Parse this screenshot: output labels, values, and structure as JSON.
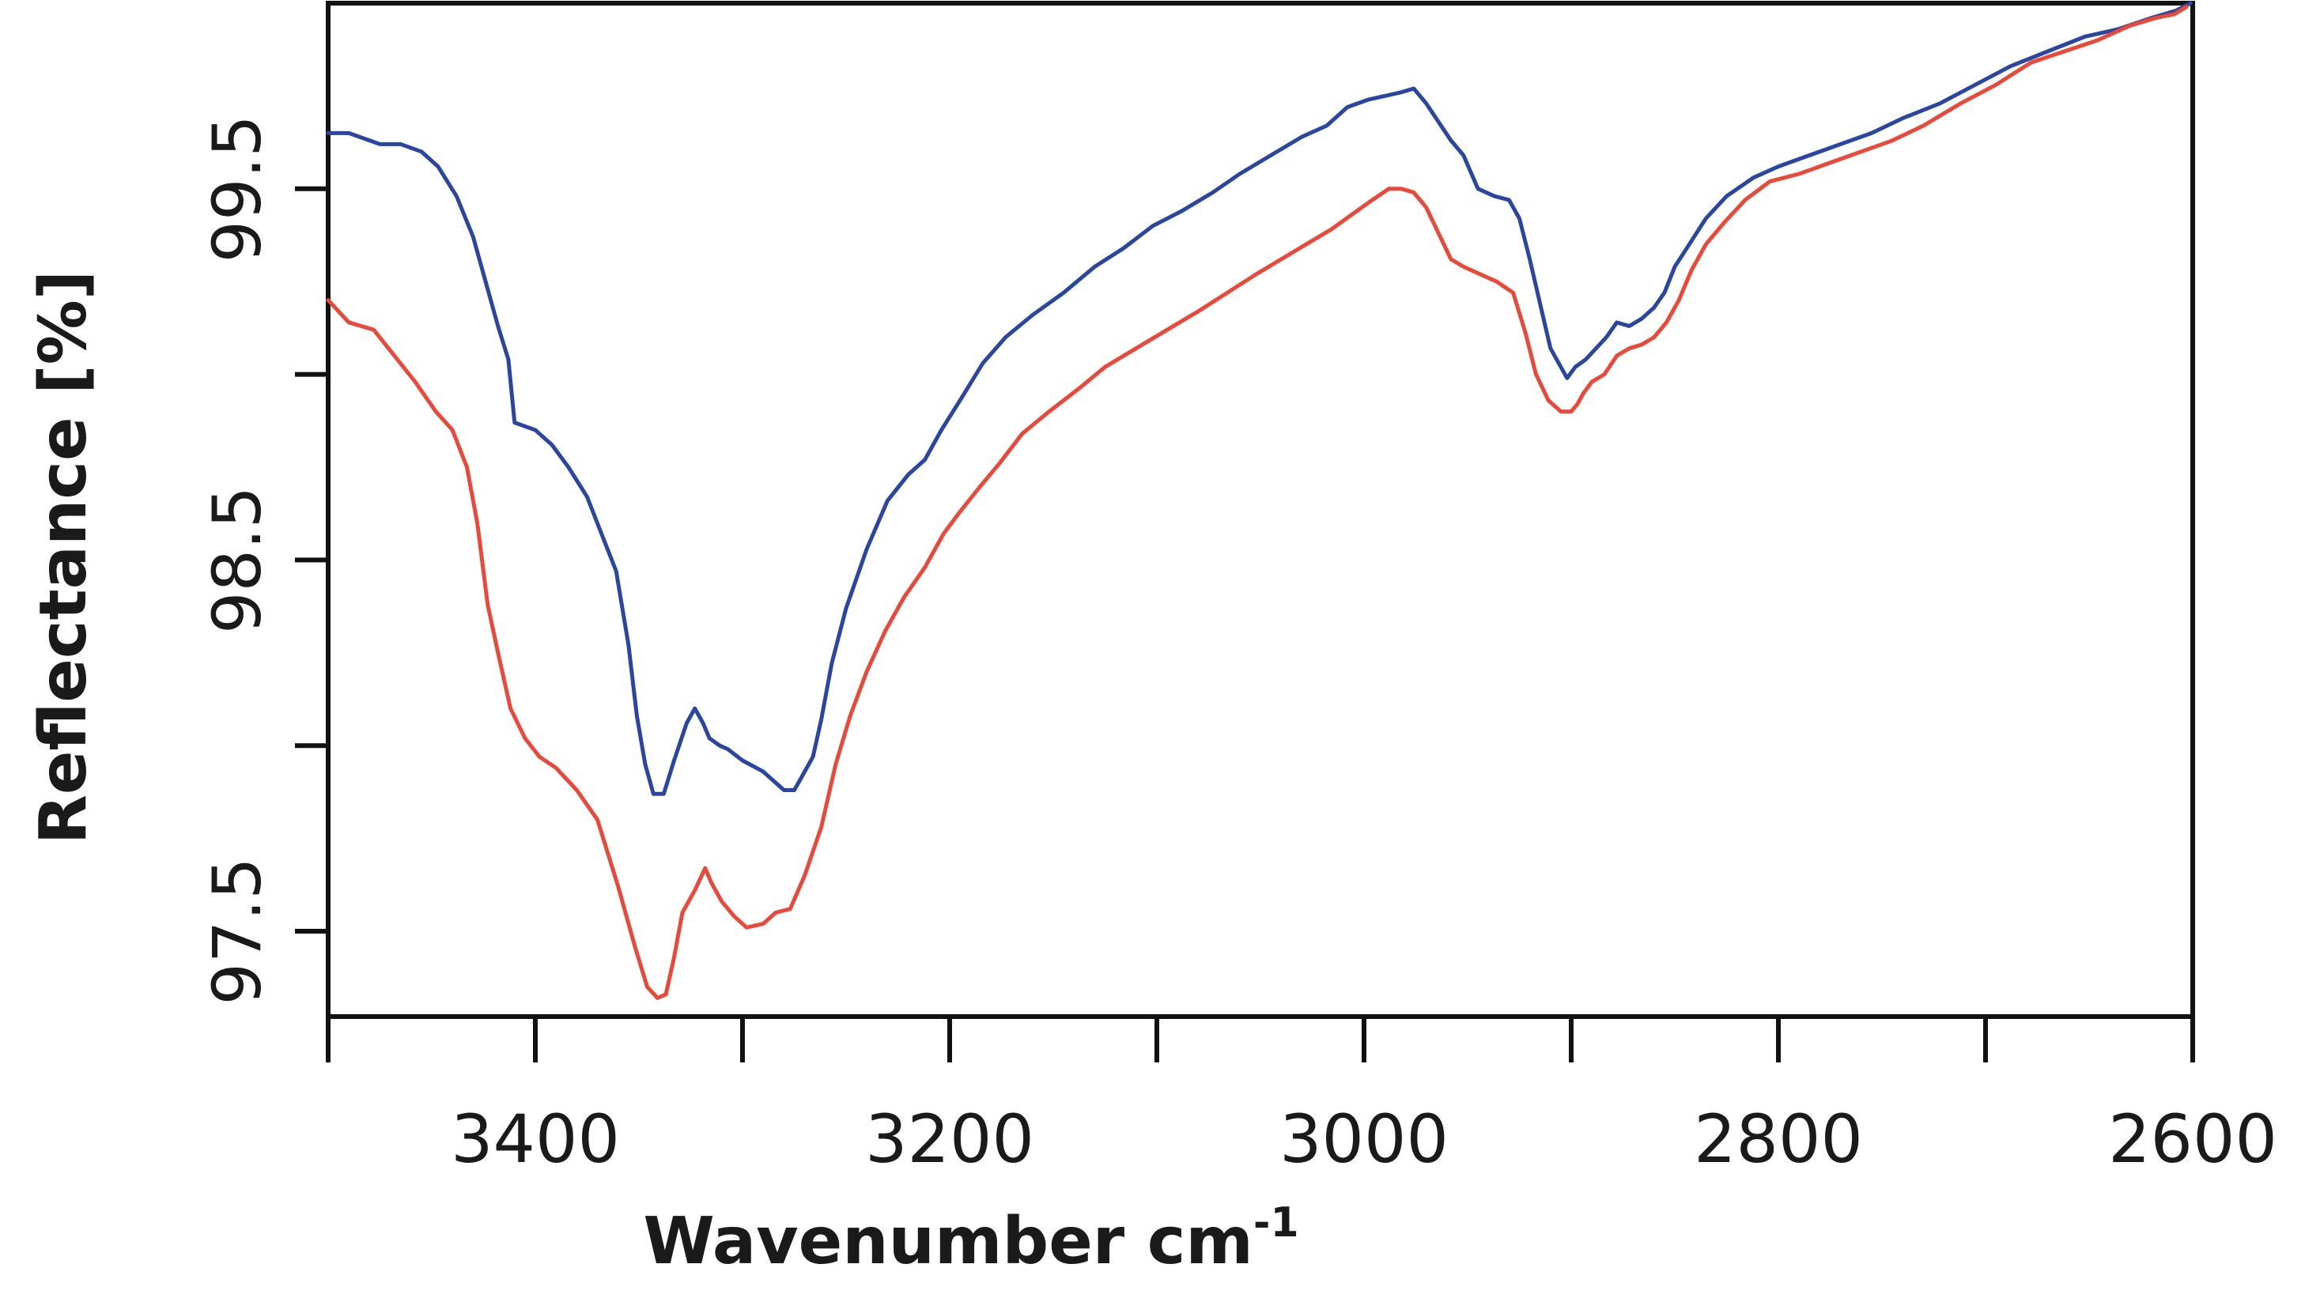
{
  "chart_data": {
    "type": "line",
    "title": "",
    "xlabel": "Wavenumber cm",
    "xlabel_superscript": "-1",
    "ylabel": "Reflectance [%]",
    "xlim": [
      3500,
      2600
    ],
    "ylim": [
      97.27,
      100.0
    ],
    "x_ticks": [
      3500,
      3400,
      3300,
      3200,
      3100,
      3000,
      2900,
      2800,
      2700,
      2600
    ],
    "x_tick_labels": [
      {
        "value": 3400,
        "text": "3400"
      },
      {
        "value": 3200,
        "text": "3200"
      },
      {
        "value": 3000,
        "text": "3000"
      },
      {
        "value": 2800,
        "text": "2800"
      },
      {
        "value": 2600,
        "text": "2600"
      }
    ],
    "y_ticks": [
      97.5,
      98.0,
      98.5,
      99.0,
      99.5
    ],
    "y_tick_labels": [
      {
        "value": 97.5,
        "text": "97.5"
      },
      {
        "value": 98.5,
        "text": "98.5"
      },
      {
        "value": 99.5,
        "text": "99.5"
      }
    ],
    "grid": false,
    "series": [
      {
        "color": "#2a46a0",
        "x": [
          3500,
          3490,
          3475,
          3465,
          3455,
          3447,
          3438,
          3430,
          3423,
          3418,
          3413,
          3410,
          3400,
          3392,
          3384,
          3375,
          3368,
          3361,
          3355,
          3351,
          3347,
          3343,
          3338,
          3333,
          3327,
          3323,
          3319,
          3316,
          3311,
          3307,
          3300,
          3290,
          3280,
          3275,
          3271,
          3266,
          3262,
          3257,
          3250,
          3240,
          3230,
          3220,
          3212,
          3204,
          3195,
          3184,
          3173,
          3160,
          3145,
          3130,
          3116,
          3102,
          3088,
          3073,
          3060,
          3045,
          3030,
          3018,
          3008,
          2998,
          2990,
          2982,
          2976,
          2970,
          2964,
          2958,
          2952,
          2945,
          2937,
          2930,
          2925,
          2920,
          2915,
          2910,
          2905,
          2902,
          2898,
          2893,
          2888,
          2883,
          2878,
          2872,
          2866,
          2860,
          2855,
          2850,
          2843,
          2835,
          2825,
          2812,
          2800,
          2785,
          2770,
          2755,
          2740,
          2722,
          2705,
          2688,
          2670,
          2652,
          2636,
          2620,
          2608,
          2601
        ],
        "y": [
          99.65,
          99.65,
          99.62,
          99.62,
          99.6,
          99.56,
          99.48,
          99.37,
          99.23,
          99.13,
          99.04,
          98.87,
          98.85,
          98.81,
          98.75,
          98.67,
          98.57,
          98.47,
          98.27,
          98.08,
          97.95,
          97.87,
          97.87,
          97.96,
          98.06,
          98.1,
          98.06,
          98.02,
          98.0,
          97.99,
          97.96,
          97.93,
          97.88,
          97.88,
          97.92,
          97.97,
          98.07,
          98.22,
          98.37,
          98.53,
          98.66,
          98.73,
          98.77,
          98.85,
          98.93,
          99.03,
          99.1,
          99.16,
          99.22,
          99.29,
          99.34,
          99.4,
          99.44,
          99.49,
          99.54,
          99.59,
          99.64,
          99.67,
          99.72,
          99.74,
          99.75,
          99.76,
          99.77,
          99.73,
          99.68,
          99.63,
          99.59,
          99.5,
          99.48,
          99.47,
          99.42,
          99.31,
          99.19,
          99.07,
          99.02,
          98.99,
          99.02,
          99.04,
          99.07,
          99.1,
          99.14,
          99.13,
          99.15,
          99.18,
          99.22,
          99.29,
          99.35,
          99.42,
          99.48,
          99.53,
          99.56,
          99.59,
          99.62,
          99.65,
          99.69,
          99.73,
          99.78,
          99.83,
          99.87,
          99.91,
          99.93,
          99.96,
          99.98,
          100.0
        ]
      },
      {
        "color": "#e8493a",
        "x": [
          3500,
          3490,
          3478,
          3468,
          3458,
          3448,
          3440,
          3433,
          3428,
          3423,
          3418,
          3412,
          3405,
          3398,
          3390,
          3380,
          3370,
          3360,
          3352,
          3346,
          3341,
          3337,
          3333,
          3329,
          3323,
          3318,
          3315,
          3310,
          3304,
          3298,
          3290,
          3284,
          3277,
          3270,
          3262,
          3255,
          3248,
          3240,
          3231,
          3222,
          3212,
          3203,
          3195,
          3185,
          3176,
          3165,
          3152,
          3138,
          3125,
          3110,
          3095,
          3080,
          3066,
          3052,
          3040,
          3028,
          3016,
          3006,
          2996,
          2988,
          2982,
          2976,
          2970,
          2964,
          2958,
          2952,
          2944,
          2936,
          2928,
          2922,
          2917,
          2911,
          2905,
          2900,
          2897,
          2894,
          2890,
          2884,
          2878,
          2872,
          2866,
          2860,
          2854,
          2848,
          2842,
          2835,
          2826,
          2816,
          2804,
          2790,
          2775,
          2760,
          2745,
          2730,
          2712,
          2695,
          2678,
          2662,
          2646,
          2630,
          2618,
          2609,
          2603
        ],
        "y": [
          99.2,
          99.14,
          99.12,
          99.05,
          98.98,
          98.9,
          98.85,
          98.75,
          98.6,
          98.38,
          98.25,
          98.1,
          98.02,
          97.97,
          97.94,
          97.88,
          97.8,
          97.62,
          97.46,
          97.35,
          97.32,
          97.33,
          97.43,
          97.55,
          97.61,
          97.67,
          97.63,
          97.58,
          97.54,
          97.51,
          97.52,
          97.55,
          97.56,
          97.65,
          97.78,
          97.95,
          98.08,
          98.2,
          98.31,
          98.4,
          98.48,
          98.57,
          98.63,
          98.7,
          98.76,
          98.84,
          98.9,
          98.96,
          99.02,
          99.07,
          99.12,
          99.17,
          99.22,
          99.27,
          99.31,
          99.35,
          99.39,
          99.43,
          99.47,
          99.5,
          99.5,
          99.49,
          99.45,
          99.38,
          99.31,
          99.29,
          99.27,
          99.25,
          99.22,
          99.11,
          99.0,
          98.93,
          98.9,
          98.9,
          98.92,
          98.95,
          98.98,
          99.0,
          99.05,
          99.07,
          99.08,
          99.1,
          99.14,
          99.2,
          99.28,
          99.35,
          99.41,
          99.47,
          99.52,
          99.54,
          99.57,
          99.6,
          99.63,
          99.67,
          99.73,
          99.78,
          99.84,
          99.87,
          99.9,
          99.94,
          99.96,
          99.97,
          99.99
        ]
      }
    ]
  }
}
